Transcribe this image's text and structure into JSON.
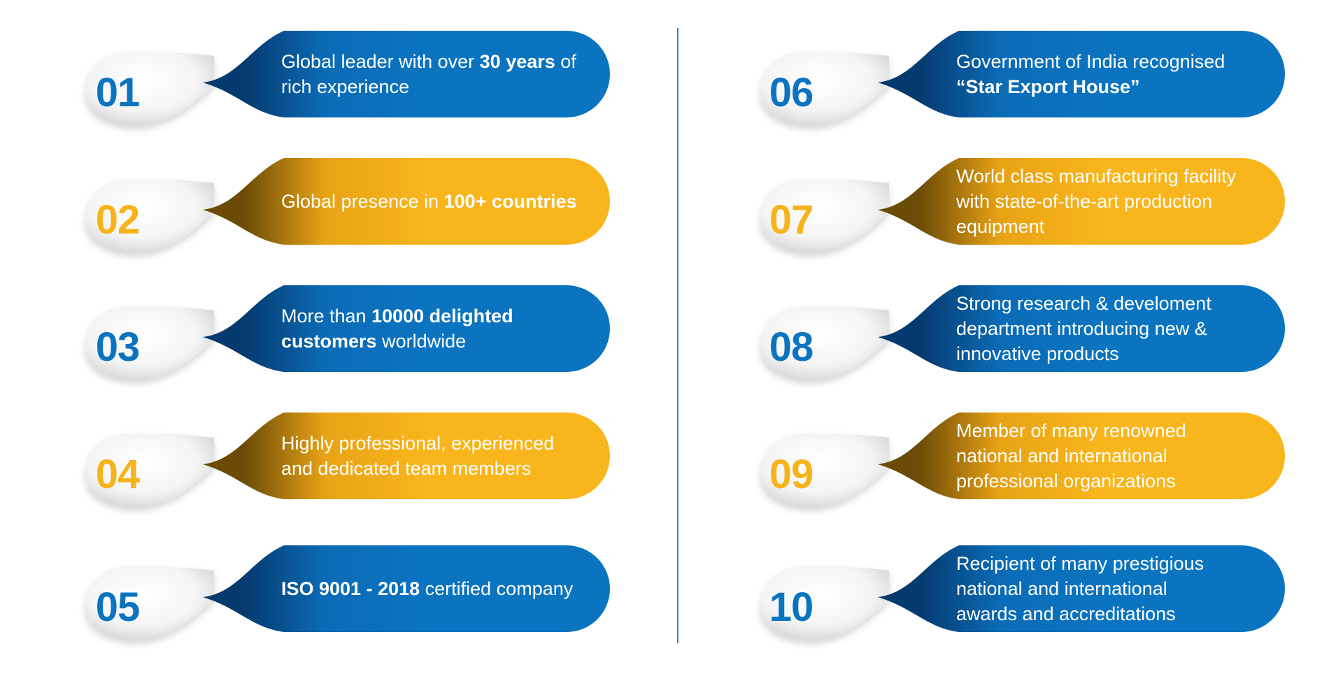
{
  "colors": {
    "blue": "#0b74c0",
    "yellow": "#f9b51c",
    "divider": "#3a86c8"
  },
  "items": [
    {
      "num": "01",
      "color": "blue",
      "parts": [
        {
          "t": "Global leader with over "
        },
        {
          "t": "30 years",
          "b": true
        },
        {
          "t": " of"
        },
        {
          "t": "\n"
        },
        {
          "t": "rich experience"
        }
      ]
    },
    {
      "num": "02",
      "color": "yellow",
      "parts": [
        {
          "t": "Global presence in "
        },
        {
          "t": "100+ countries",
          "b": true
        }
      ]
    },
    {
      "num": "03",
      "color": "blue",
      "parts": [
        {
          "t": "More than "
        },
        {
          "t": "10000 delighted",
          "b": true
        },
        {
          "t": "\n"
        },
        {
          "t": "customers",
          "b": true
        },
        {
          "t": " worldwide"
        }
      ]
    },
    {
      "num": "04",
      "color": "yellow",
      "parts": [
        {
          "t": "Highly professional, experienced"
        },
        {
          "t": "\n"
        },
        {
          "t": "and dedicated team members"
        }
      ]
    },
    {
      "num": "05",
      "color": "blue",
      "parts": [
        {
          "t": "ISO 9001 - 2018",
          "b": true
        },
        {
          "t": " certified company"
        }
      ]
    },
    {
      "num": "06",
      "color": "blue",
      "parts": [
        {
          "t": "Government of India recognised"
        },
        {
          "t": "\n"
        },
        {
          "t": "“Star Export House”",
          "b": true
        }
      ]
    },
    {
      "num": "07",
      "color": "yellow",
      "parts": [
        {
          "t": "World class manufacturing facility"
        },
        {
          "t": "\n"
        },
        {
          "t": "with state-of-the-art production"
        },
        {
          "t": "\n"
        },
        {
          "t": "equipment"
        }
      ]
    },
    {
      "num": "08",
      "color": "blue",
      "parts": [
        {
          "t": "Strong research & develoment"
        },
        {
          "t": "\n"
        },
        {
          "t": "department introducing new  &"
        },
        {
          "t": "\n"
        },
        {
          "t": "innovative products"
        }
      ]
    },
    {
      "num": "09",
      "color": "yellow",
      "parts": [
        {
          "t": "Member of many renowned"
        },
        {
          "t": "\n"
        },
        {
          "t": "national and international"
        },
        {
          "t": "\n"
        },
        {
          "t": "professional organizations"
        }
      ]
    },
    {
      "num": "10",
      "color": "blue",
      "parts": [
        {
          "t": "Recipient of many prestigious"
        },
        {
          "t": "\n"
        },
        {
          "t": "national and international"
        },
        {
          "t": "\n"
        },
        {
          "t": "awards and accreditations"
        }
      ]
    }
  ]
}
